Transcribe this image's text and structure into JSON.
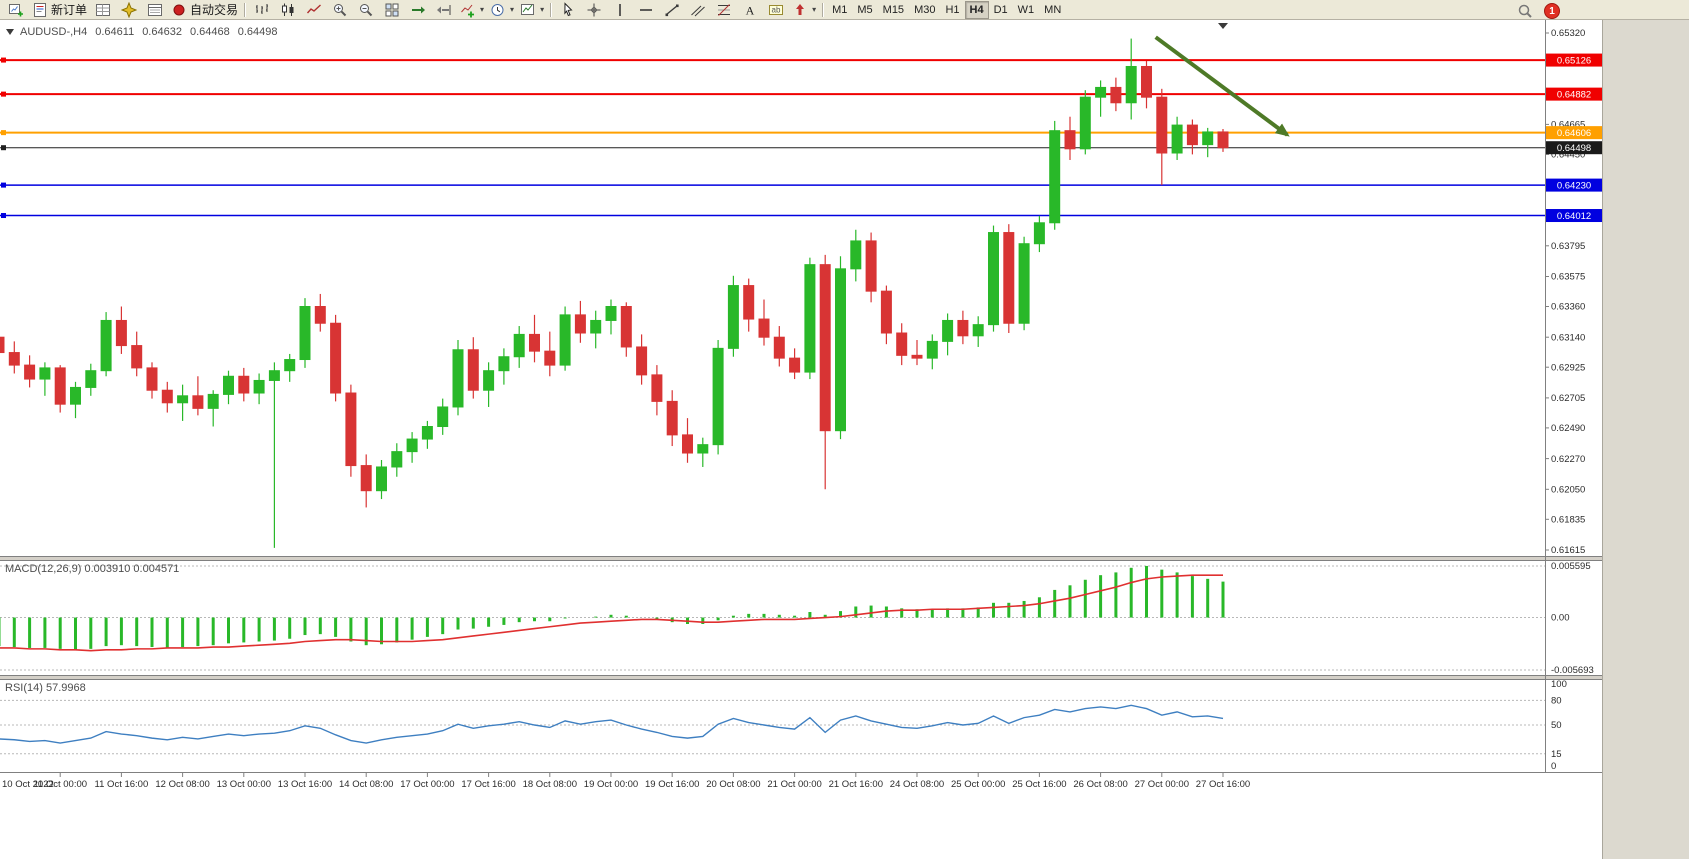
{
  "toolbar": {
    "notification_count": "1",
    "groups": [
      {
        "name": "standard",
        "items": [
          {
            "name": "new-chart-button",
            "icon": "new-chart"
          },
          {
            "name": "new-order-button",
            "icon": "order",
            "label": "新订单"
          },
          {
            "name": "market-watch-button",
            "icon": "market-watch"
          },
          {
            "name": "navigator-button",
            "icon": "navigator"
          },
          {
            "name": "terminal-button",
            "icon": "data-window"
          },
          {
            "name": "auto-trading-button",
            "icon": "autotrade",
            "label": "自动交易"
          }
        ]
      },
      {
        "name": "chart-tools",
        "items": [
          {
            "name": "bar-chart-button",
            "icon": "bars"
          },
          {
            "name": "candlestick-chart-button",
            "icon": "candles"
          },
          {
            "name": "line-chart-button",
            "icon": "linechart"
          },
          {
            "name": "zoom-in-button",
            "icon": "zoom-in"
          },
          {
            "name": "zoom-out-button",
            "icon": "zoom-out"
          },
          {
            "name": "tile-windows-button",
            "icon": "tile"
          },
          {
            "name": "auto-scroll-button",
            "icon": "autoscroll"
          },
          {
            "name": "chart-shift-button",
            "icon": "shift"
          },
          {
            "name": "indicators-button",
            "icon": "indicators",
            "dropdown": true
          },
          {
            "name": "periods-button",
            "icon": "periods",
            "dropdown": true
          },
          {
            "name": "templates-button",
            "icon": "templates",
            "dropdown": true
          }
        ]
      },
      {
        "name": "line-studies",
        "items": [
          {
            "name": "cursor-button",
            "icon": "cursor"
          },
          {
            "name": "crosshair-button",
            "icon": "crosshair"
          },
          {
            "name": "vertical-line-button",
            "icon": "vline"
          },
          {
            "name": "horizontal-line-button",
            "icon": "hline"
          },
          {
            "name": "trendline-button",
            "icon": "trendline"
          },
          {
            "name": "channel-button",
            "icon": "channel"
          },
          {
            "name": "fibonacci-button",
            "icon": "fibo"
          },
          {
            "name": "text-button",
            "icon": "text-a"
          },
          {
            "name": "text-label-button",
            "icon": "text-label"
          },
          {
            "name": "arrows-button",
            "icon": "arrows",
            "dropdown": true
          }
        ]
      },
      {
        "name": "timeframes",
        "items": [
          {
            "name": "tf-m1",
            "label": "M1"
          },
          {
            "name": "tf-m5",
            "label": "M5"
          },
          {
            "name": "tf-m15",
            "label": "M15"
          },
          {
            "name": "tf-m30",
            "label": "M30"
          },
          {
            "name": "tf-h1",
            "label": "H1"
          },
          {
            "name": "tf-h4",
            "label": "H4",
            "active": true
          },
          {
            "name": "tf-d1",
            "label": "D1"
          },
          {
            "name": "tf-w1",
            "label": "W1"
          },
          {
            "name": "tf-mn",
            "label": "MN"
          }
        ]
      }
    ]
  },
  "chart_header": {
    "symbol": "AUDUSD-,H4",
    "open": "0.64611",
    "high": "0.64632",
    "low": "0.64468",
    "close": "0.64498"
  },
  "chart_data": {
    "type": "candlestick",
    "symbol": "AUDUSD",
    "timeframe": "H4",
    "colors": {
      "up": "#29b829",
      "down": "#d83434",
      "macd_bar": "#29b829",
      "macd_signal": "#e03030",
      "rsi_line": "#3e7fc1",
      "axis_text": "#2b2b2b"
    },
    "price_axis": {
      "max": 0.6532,
      "min": 0.61615,
      "ticks": [
        "0.65320",
        "0.65105",
        "0.64885",
        "0.64665",
        "0.64450",
        "0.64230",
        "0.64015",
        "0.63795",
        "0.63575",
        "0.63360",
        "0.63140",
        "0.62925",
        "0.62705",
        "0.62490",
        "0.62270",
        "0.62050",
        "0.61835",
        "0.61615"
      ]
    },
    "hlines": [
      {
        "price": 0.65126,
        "label": "0.65126",
        "color": "#f00000",
        "width": 2
      },
      {
        "price": 0.64882,
        "label": "0.64882",
        "color": "#f00000",
        "width": 2
      },
      {
        "price": 0.64606,
        "label": "0.64606",
        "color": "#ffa000",
        "width": 2
      },
      {
        "price": 0.64498,
        "label": "0.64498",
        "color": "#202020",
        "width": 1,
        "current": true
      },
      {
        "price": 0.6423,
        "label": "0.64230",
        "color": "#0000e0",
        "width": 1.5
      },
      {
        "price": 0.64012,
        "label": "0.64012",
        "color": "#0000e0",
        "width": 1.5
      }
    ],
    "trend_arrow": {
      "i1": 75.6,
      "p1": 0.6529,
      "i2": 84.2,
      "p2": 0.6459,
      "color": "#4e7a27",
      "width": 4
    },
    "x_labels": [
      {
        "i": 0,
        "t": "10 Oct 2022"
      },
      {
        "i": 4,
        "t": "11 Oct 00:00"
      },
      {
        "i": 8,
        "t": "11 Oct 16:00"
      },
      {
        "i": 12,
        "t": "12 Oct 08:00"
      },
      {
        "i": 16,
        "t": "13 Oct 00:00"
      },
      {
        "i": 20,
        "t": "13 Oct 16:00"
      },
      {
        "i": 24,
        "t": "14 Oct 08:00"
      },
      {
        "i": 28,
        "t": "17 Oct 00:00"
      },
      {
        "i": 32,
        "t": "17 Oct 16:00"
      },
      {
        "i": 36,
        "t": "18 Oct 08:00"
      },
      {
        "i": 40,
        "t": "19 Oct 00:00"
      },
      {
        "i": 44,
        "t": "19 Oct 16:00"
      },
      {
        "i": 48,
        "t": "20 Oct 08:00"
      },
      {
        "i": 52,
        "t": "21 Oct 00:00"
      },
      {
        "i": 56,
        "t": "21 Oct 16:00"
      },
      {
        "i": 60,
        "t": "24 Oct 08:00"
      },
      {
        "i": 64,
        "t": "25 Oct 00:00"
      },
      {
        "i": 68,
        "t": "25 Oct 16:00"
      },
      {
        "i": 72,
        "t": "26 Oct 08:00"
      },
      {
        "i": 76,
        "t": "27 Oct 00:00"
      },
      {
        "i": 80,
        "t": "27 Oct 16:00"
      }
    ],
    "candles": [
      [
        0.6314,
        0.6319,
        0.6298,
        0.6303
      ],
      [
        0.6303,
        0.6311,
        0.6288,
        0.6294
      ],
      [
        0.6294,
        0.6301,
        0.6278,
        0.6284
      ],
      [
        0.6284,
        0.6296,
        0.6272,
        0.6292
      ],
      [
        0.6292,
        0.6294,
        0.626,
        0.6266
      ],
      [
        0.6266,
        0.6282,
        0.6256,
        0.6278
      ],
      [
        0.6278,
        0.6295,
        0.6272,
        0.629
      ],
      [
        0.629,
        0.6332,
        0.6286,
        0.6326
      ],
      [
        0.6326,
        0.6336,
        0.6302,
        0.6308
      ],
      [
        0.6308,
        0.6318,
        0.6286,
        0.6292
      ],
      [
        0.6292,
        0.6296,
        0.627,
        0.6276
      ],
      [
        0.6276,
        0.6282,
        0.626,
        0.6267
      ],
      [
        0.6267,
        0.628,
        0.6254,
        0.6272
      ],
      [
        0.6272,
        0.6286,
        0.6258,
        0.6263
      ],
      [
        0.6263,
        0.6276,
        0.625,
        0.6273
      ],
      [
        0.6273,
        0.629,
        0.6266,
        0.6286
      ],
      [
        0.6286,
        0.6292,
        0.6268,
        0.6274
      ],
      [
        0.6274,
        0.6288,
        0.6266,
        0.6283
      ],
      [
        0.6283,
        0.6296,
        0.6163,
        0.629
      ],
      [
        0.629,
        0.6302,
        0.6282,
        0.6298
      ],
      [
        0.6298,
        0.6342,
        0.6292,
        0.6336
      ],
      [
        0.6336,
        0.6345,
        0.6318,
        0.6324
      ],
      [
        0.6324,
        0.633,
        0.6268,
        0.6274
      ],
      [
        0.6274,
        0.628,
        0.6214,
        0.6222
      ],
      [
        0.6222,
        0.623,
        0.6192,
        0.6204
      ],
      [
        0.6204,
        0.6226,
        0.6198,
        0.6221
      ],
      [
        0.6221,
        0.6238,
        0.6214,
        0.6232
      ],
      [
        0.6232,
        0.6246,
        0.6224,
        0.6241
      ],
      [
        0.6241,
        0.6254,
        0.6234,
        0.625
      ],
      [
        0.625,
        0.627,
        0.6244,
        0.6264
      ],
      [
        0.6264,
        0.6312,
        0.6258,
        0.6305
      ],
      [
        0.6305,
        0.6314,
        0.627,
        0.6276
      ],
      [
        0.6276,
        0.6296,
        0.6264,
        0.629
      ],
      [
        0.629,
        0.6306,
        0.628,
        0.63
      ],
      [
        0.63,
        0.6322,
        0.6292,
        0.6316
      ],
      [
        0.6316,
        0.633,
        0.6296,
        0.6304
      ],
      [
        0.6304,
        0.6318,
        0.6286,
        0.6294
      ],
      [
        0.6294,
        0.6336,
        0.629,
        0.633
      ],
      [
        0.633,
        0.634,
        0.631,
        0.6317
      ],
      [
        0.6317,
        0.6333,
        0.6306,
        0.6326
      ],
      [
        0.6326,
        0.6341,
        0.6316,
        0.6336
      ],
      [
        0.6336,
        0.6339,
        0.63,
        0.6307
      ],
      [
        0.6307,
        0.6316,
        0.628,
        0.6287
      ],
      [
        0.6287,
        0.6294,
        0.6258,
        0.6268
      ],
      [
        0.6268,
        0.6276,
        0.6236,
        0.6244
      ],
      [
        0.6244,
        0.6256,
        0.6224,
        0.6231
      ],
      [
        0.6231,
        0.6242,
        0.6221,
        0.6237
      ],
      [
        0.6237,
        0.6312,
        0.623,
        0.6306
      ],
      [
        0.6306,
        0.6358,
        0.63,
        0.6351
      ],
      [
        0.6351,
        0.6356,
        0.6318,
        0.6327
      ],
      [
        0.6327,
        0.6341,
        0.6308,
        0.6314
      ],
      [
        0.6314,
        0.6322,
        0.6293,
        0.6299
      ],
      [
        0.6299,
        0.6306,
        0.6284,
        0.6289
      ],
      [
        0.6289,
        0.6371,
        0.6284,
        0.6366
      ],
      [
        0.6366,
        0.6373,
        0.6205,
        0.6247
      ],
      [
        0.6247,
        0.6372,
        0.6241,
        0.6363
      ],
      [
        0.6363,
        0.6391,
        0.6354,
        0.6383
      ],
      [
        0.6383,
        0.6389,
        0.6339,
        0.6347
      ],
      [
        0.6347,
        0.6351,
        0.6309,
        0.6317
      ],
      [
        0.6317,
        0.6324,
        0.6294,
        0.6301
      ],
      [
        0.6301,
        0.6312,
        0.6294,
        0.6299
      ],
      [
        0.6299,
        0.6316,
        0.6291,
        0.6311
      ],
      [
        0.6311,
        0.6331,
        0.6301,
        0.6326
      ],
      [
        0.6326,
        0.6333,
        0.6309,
        0.6315
      ],
      [
        0.6315,
        0.6329,
        0.6307,
        0.6323
      ],
      [
        0.6323,
        0.6394,
        0.6318,
        0.6389
      ],
      [
        0.6389,
        0.6395,
        0.6317,
        0.6324
      ],
      [
        0.6324,
        0.6386,
        0.6319,
        0.6381
      ],
      [
        0.6381,
        0.6401,
        0.6375,
        0.6396
      ],
      [
        0.6396,
        0.6469,
        0.6391,
        0.6462
      ],
      [
        0.6462,
        0.6472,
        0.6441,
        0.6449
      ],
      [
        0.6449,
        0.6491,
        0.6445,
        0.6486
      ],
      [
        0.6486,
        0.6498,
        0.6472,
        0.6493
      ],
      [
        0.6493,
        0.65,
        0.6476,
        0.6482
      ],
      [
        0.6482,
        0.6528,
        0.647,
        0.6508
      ],
      [
        0.6508,
        0.6512,
        0.6478,
        0.6486
      ],
      [
        0.6486,
        0.6492,
        0.6423,
        0.6446
      ],
      [
        0.6446,
        0.6472,
        0.6441,
        0.6466
      ],
      [
        0.6466,
        0.647,
        0.6445,
        0.6452
      ],
      [
        0.6452,
        0.6464,
        0.6443,
        0.64611
      ],
      [
        0.64611,
        0.64632,
        0.64468,
        0.64498
      ]
    ],
    "macd": {
      "header_label": "MACD(12,26,9)",
      "header_values": "0.003910 0.004571",
      "axis_ticks": [
        "0.005595",
        "0.00",
        "-0.005693"
      ],
      "max": 0.005595,
      "min": -0.005693,
      "values": [
        -0.0031,
        -0.0032,
        -0.0033,
        -0.0033,
        -0.0034,
        -0.0035,
        -0.0034,
        -0.0031,
        -0.003,
        -0.0031,
        -0.0032,
        -0.0033,
        -0.0032,
        -0.0031,
        -0.003,
        -0.0028,
        -0.0027,
        -0.0026,
        -0.0025,
        -0.0023,
        -0.0019,
        -0.0018,
        -0.0021,
        -0.0026,
        -0.003,
        -0.0029,
        -0.0027,
        -0.0024,
        -0.0021,
        -0.0018,
        -0.0013,
        -0.0012,
        -0.001,
        -0.0008,
        -0.0005,
        -0.0004,
        -0.0004,
        -0.0001,
        0.0,
        0.0001,
        0.0003,
        0.0002,
        0.0,
        -0.0002,
        -0.0005,
        -0.0007,
        -0.0007,
        -0.0003,
        0.0002,
        0.0004,
        0.0004,
        0.0003,
        0.0002,
        0.0006,
        0.0003,
        0.0007,
        0.0012,
        0.0013,
        0.0012,
        0.001,
        0.0009,
        0.0009,
        0.001,
        0.001,
        0.0011,
        0.0016,
        0.0016,
        0.0018,
        0.0022,
        0.003,
        0.0035,
        0.0041,
        0.0046,
        0.0049,
        0.0054,
        0.0056,
        0.0052,
        0.0049,
        0.0045,
        0.0042,
        0.0039
      ],
      "signal": [
        -0.0033,
        -0.0033,
        -0.0034,
        -0.0034,
        -0.0035,
        -0.0035,
        -0.0036,
        -0.0035,
        -0.0035,
        -0.0034,
        -0.0034,
        -0.0033,
        -0.0033,
        -0.0033,
        -0.0032,
        -0.0032,
        -0.0031,
        -0.003,
        -0.0029,
        -0.0028,
        -0.0026,
        -0.0025,
        -0.0024,
        -0.0024,
        -0.0025,
        -0.0026,
        -0.0026,
        -0.0026,
        -0.0025,
        -0.0024,
        -0.0022,
        -0.002,
        -0.0018,
        -0.0016,
        -0.0014,
        -0.0012,
        -0.001,
        -0.0008,
        -0.0006,
        -0.0005,
        -0.0004,
        -0.0003,
        -0.0002,
        -0.0002,
        -0.0003,
        -0.0004,
        -0.0005,
        -0.0005,
        -0.0004,
        -0.0003,
        -0.0002,
        -0.0002,
        -0.0002,
        -0.0001,
        0.0,
        0.0001,
        0.0003,
        0.0005,
        0.0007,
        0.0008,
        0.0008,
        0.0009,
        0.0009,
        0.0009,
        0.001,
        0.0011,
        0.0012,
        0.0013,
        0.0015,
        0.0018,
        0.0021,
        0.0025,
        0.0029,
        0.0033,
        0.0038,
        0.0042,
        0.0044,
        0.0045,
        0.0046,
        0.0046,
        0.0046
      ]
    },
    "rsi": {
      "header_label": "RSI(14)",
      "header_value": "57.9968",
      "axis_ticks": [
        "100",
        "80",
        "50",
        "15",
        "0"
      ],
      "levels": [
        80,
        50,
        15
      ],
      "range": [
        0,
        100
      ],
      "values": [
        33,
        32,
        30,
        31,
        28,
        31,
        34,
        42,
        39,
        37,
        34,
        32,
        35,
        33,
        36,
        39,
        37,
        39,
        40,
        43,
        49,
        46,
        38,
        31,
        28,
        32,
        35,
        37,
        39,
        43,
        51,
        46,
        49,
        51,
        54,
        50,
        47,
        55,
        51,
        54,
        56,
        50,
        45,
        41,
        36,
        34,
        36,
        51,
        58,
        53,
        50,
        47,
        45,
        59,
        41,
        56,
        61,
        55,
        51,
        47,
        46,
        49,
        53,
        50,
        52,
        61,
        52,
        59,
        62,
        69,
        66,
        70,
        72,
        70,
        74,
        70,
        62,
        66,
        60,
        61,
        58
      ]
    }
  }
}
